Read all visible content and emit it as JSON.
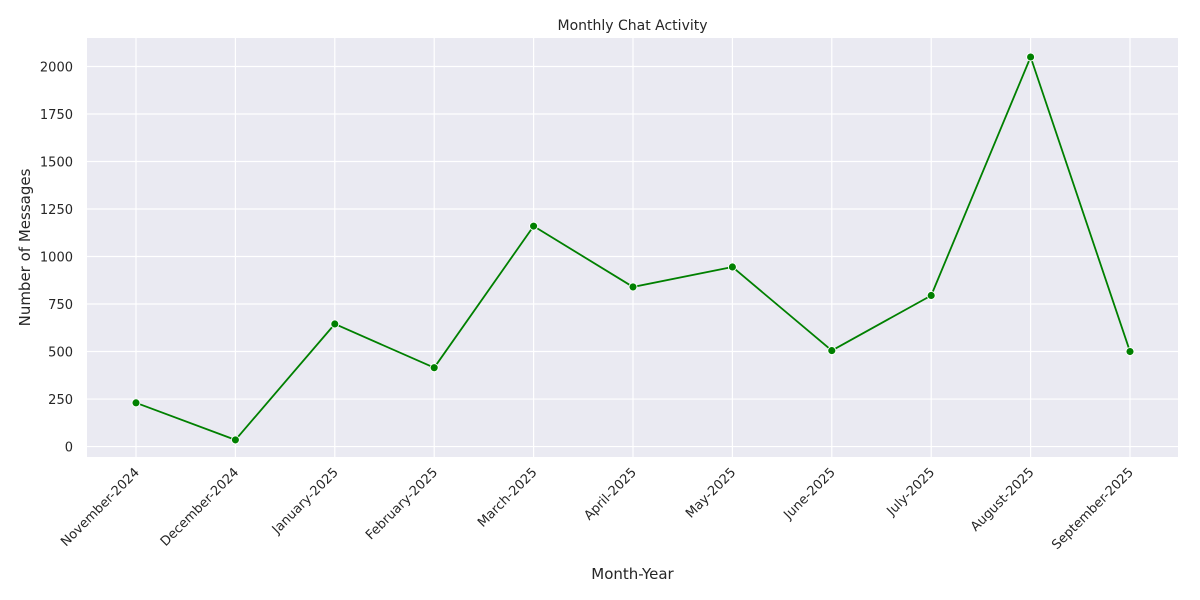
{
  "chart_data": {
    "type": "line",
    "title": "Monthly Chat Activity",
    "xlabel": "Month-Year",
    "ylabel": "Number of Messages",
    "categories": [
      "November-2024",
      "December-2024",
      "January-2025",
      "February-2025",
      "March-2025",
      "April-2025",
      "May-2025",
      "June-2025",
      "July-2025",
      "August-2025",
      "September-2025"
    ],
    "series": [
      {
        "values": [
          230,
          35,
          645,
          415,
          1160,
          840,
          945,
          505,
          795,
          2050,
          500
        ],
        "color": "#008000"
      }
    ],
    "ylim": [
      -55,
      2150
    ],
    "yticks": [
      0,
      250,
      500,
      750,
      1000,
      1250,
      1500,
      1750,
      2000
    ],
    "grid": true,
    "background": "#eaeaf2",
    "gridcolor": "#ffffff",
    "marker": "circle",
    "xtick_rotation": 45,
    "legend": "none"
  }
}
